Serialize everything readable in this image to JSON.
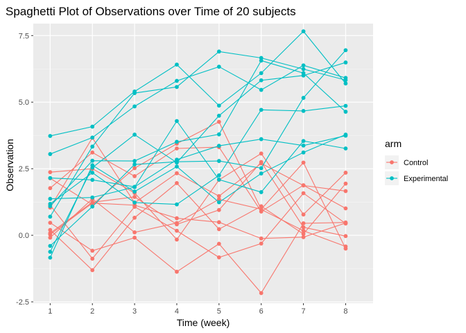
{
  "chart_data": {
    "type": "line",
    "title": "Spaghetti Plot of Observations over Time of 20 subjects",
    "xlabel": "Time (week)",
    "ylabel": "Observation",
    "x": [
      1,
      2,
      3,
      4,
      5,
      6,
      7,
      8
    ],
    "x_ticks": [
      "1",
      "2",
      "3",
      "4",
      "5",
      "6",
      "7",
      "8"
    ],
    "y_ticks": [
      -2.5,
      0.0,
      2.5,
      5.0,
      7.5
    ],
    "y_tick_labels": [
      "-2.5",
      "0.0",
      "2.5",
      "5.0",
      "7.5"
    ],
    "xlim": [
      0.6,
      8.65
    ],
    "ylim": [
      -2.55,
      7.95
    ],
    "grid": true,
    "legend": {
      "title": "arm",
      "placement": "right",
      "entries": [
        {
          "label": "Control",
          "color": "#F8766D"
        },
        {
          "label": "Experimental",
          "color": "#00BFC4"
        }
      ]
    },
    "series": [
      {
        "group": "Control",
        "values": [
          0.2,
          -1.31,
          0.66,
          1.96,
          0.23,
          1.09,
          0.05,
          1.94
        ]
      },
      {
        "group": "Control",
        "values": [
          1.13,
          -0.88,
          1.07,
          0.17,
          -0.83,
          -0.31,
          1.58,
          0.44
        ]
      },
      {
        "group": "Control",
        "values": [
          1.77,
          3.11,
          2.22,
          3.26,
          3.31,
          0.89,
          1.88,
          1.01
        ]
      },
      {
        "group": "Control",
        "values": [
          1.04,
          3.66,
          1.22,
          2.33,
          1.47,
          2.7,
          1.87,
          1.66
        ]
      },
      {
        "group": "Control",
        "values": [
          0.47,
          -0.58,
          -0.09,
          -1.37,
          -0.32,
          -2.17,
          0.45,
          0.48
        ]
      },
      {
        "group": "Control",
        "values": [
          2.37,
          2.5,
          1.59,
          -0.16,
          2.08,
          3.07,
          0.78,
          2.35
        ]
      },
      {
        "group": "Control",
        "values": [
          0.03,
          1.21,
          1.13,
          0.64,
          0.49,
          -0.12,
          -0.07,
          0.46
        ]
      },
      {
        "group": "Control",
        "values": [
          -0.09,
          1.37,
          0.11,
          0.46,
          1.35,
          0.98,
          2.73,
          -0.5
        ]
      },
      {
        "group": "Control",
        "values": [
          0.08,
          1.24,
          1.44,
          0.41,
          0.95,
          2.75,
          0.3,
          -0.03
        ]
      },
      {
        "group": "Control",
        "values": [
          2.14,
          1.15,
          2.52,
          3.44,
          4.26,
          0.97,
          0.17,
          -0.42
        ]
      },
      {
        "group": "Experimental",
        "values": [
          3.05,
          3.67,
          4.84,
          5.8,
          6.33,
          5.46,
          6.38,
          5.91
        ]
      },
      {
        "group": "Experimental",
        "values": [
          -0.84,
          2.63,
          1.64,
          2.58,
          1.24,
          2.32,
          3.11,
          3.78
        ]
      },
      {
        "group": "Experimental",
        "values": [
          2.15,
          2.08,
          1.82,
          2.84,
          3.36,
          3.61,
          3.37,
          3.74
        ]
      },
      {
        "group": "Experimental",
        "values": [
          -0.62,
          2.54,
          3.78,
          2.73,
          4.49,
          5.82,
          6.0,
          6.49
        ]
      },
      {
        "group": "Experimental",
        "values": [
          0.7,
          3.33,
          5.34,
          5.57,
          6.9,
          6.66,
          6.24,
          5.83
        ]
      },
      {
        "group": "Experimental",
        "values": [
          3.73,
          4.08,
          5.4,
          6.41,
          4.87,
          6.09,
          7.66,
          5.7
        ]
      },
      {
        "group": "Experimental",
        "values": [
          1.18,
          2.35,
          1.23,
          1.16,
          2.25,
          4.71,
          4.67,
          4.86
        ]
      },
      {
        "group": "Experimental",
        "values": [
          1.37,
          1.42,
          1.81,
          4.29,
          2.09,
          1.62,
          3.54,
          3.26
        ]
      },
      {
        "group": "Experimental",
        "values": [
          -0.4,
          1.08,
          2.66,
          2.76,
          2.79,
          2.52,
          5.16,
          6.95
        ]
      },
      {
        "group": "Experimental",
        "values": [
          1.09,
          2.8,
          2.79,
          3.51,
          3.79,
          6.56,
          6.09,
          4.64
        ]
      }
    ]
  }
}
